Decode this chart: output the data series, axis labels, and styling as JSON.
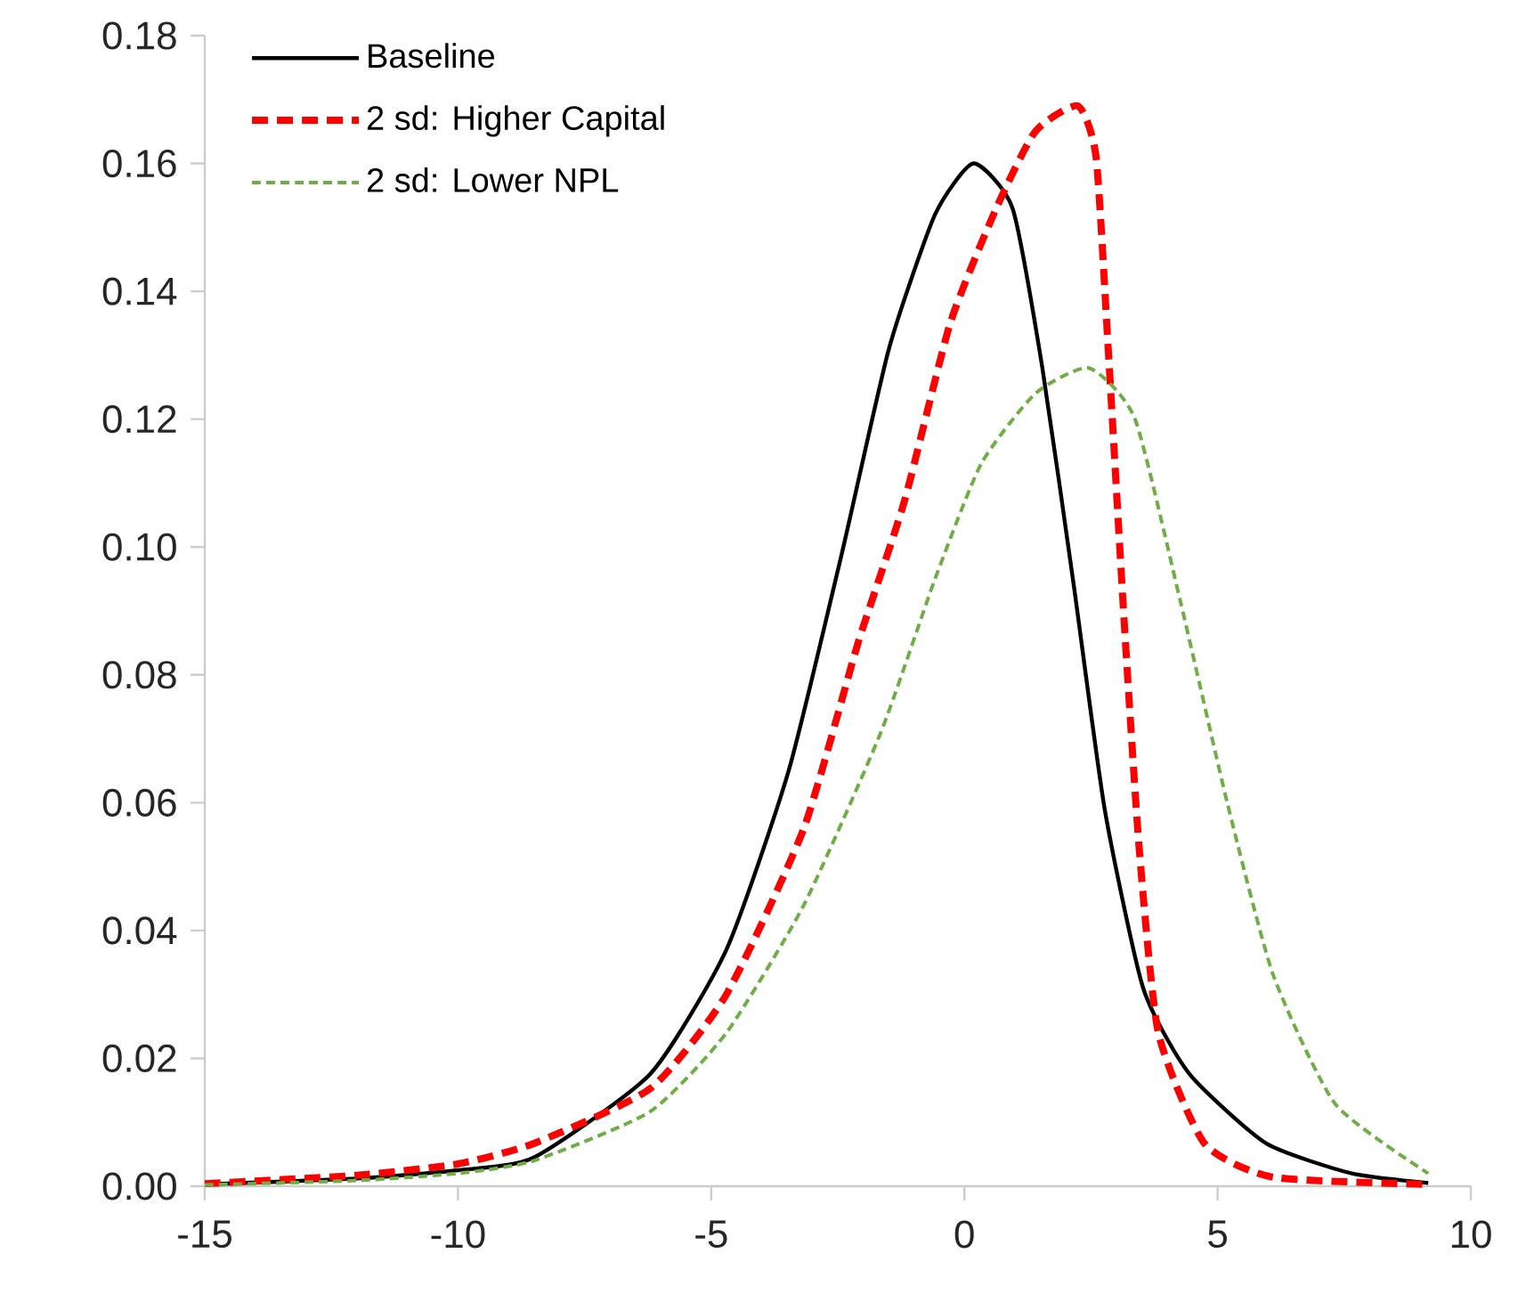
{
  "chart_data": {
    "type": "line",
    "xlim": [
      -15,
      10
    ],
    "xticks": [
      -15,
      -10,
      -5,
      0,
      5,
      10
    ],
    "ylim": [
      0,
      0.18
    ],
    "yticks": [
      {
        "value": 0,
        "label": "0.00"
      },
      {
        "value": 0.02,
        "label": "0.02"
      },
      {
        "value": 0.04,
        "label": "0.04"
      },
      {
        "value": 0.06,
        "label": "0.06"
      },
      {
        "value": 0.08,
        "label": "0.08"
      },
      {
        "value": 0.1,
        "label": "0.10"
      },
      {
        "value": 0.12,
        "label": "0.12"
      },
      {
        "value": 0.14,
        "label": "0.14"
      },
      {
        "value": 0.16,
        "label": "0.16"
      },
      {
        "value": 0.18,
        "label": "0.18"
      }
    ],
    "grid": false,
    "legend": "top left",
    "marker": "none",
    "series": [
      {
        "name": "Baseline",
        "color": "#000000",
        "line_style": "solid",
        "x": [
          -15,
          -12,
          -10,
          -8.5,
          -6.2,
          -4.7,
          -3.47,
          -2.42,
          -1.49,
          -0.58,
          0.18,
          0.95,
          1.54,
          2.16,
          2.77,
          3.53,
          4.44,
          5.96,
          7.65,
          9.16
        ],
        "values": [
          0.0003,
          0.0012,
          0.0025,
          0.0045,
          0.0176,
          0.037,
          0.065,
          0.099,
          0.131,
          0.152,
          0.16,
          0.153,
          0.128,
          0.094,
          0.059,
          0.031,
          0.0176,
          0.0067,
          0.002,
          0.0005
        ]
      },
      {
        "name": "2 sd: Higher Capital",
        "color": "#ff0000",
        "line_style": "dashed",
        "x": [
          -15,
          -12,
          -10,
          -8.5,
          -6.2,
          -4.7,
          -3.17,
          -2.1,
          -1.19,
          -0.28,
          0.63,
          1.4,
          2.24,
          2.6,
          2.84,
          3.15,
          3.45,
          3.83,
          4.74,
          6.1,
          9.16
        ],
        "values": [
          0.0004,
          0.0017,
          0.0035,
          0.0067,
          0.0153,
          0.03,
          0.056,
          0.085,
          0.107,
          0.135,
          0.153,
          0.165,
          0.169,
          0.161,
          0.131,
          0.089,
          0.053,
          0.024,
          0.0067,
          0.0014,
          0.0003
        ]
      },
      {
        "name": "2 sd: Lower NPL",
        "color": "#70ad47",
        "line_style": "dotted",
        "x": [
          -15,
          -12,
          -10,
          -8.5,
          -6.2,
          -4.7,
          -3.17,
          -1.65,
          -0.58,
          0.33,
          1.4,
          2.46,
          3.37,
          4.28,
          5.19,
          6.1,
          7.33,
          9.16
        ],
        "values": [
          0.0002,
          0.0009,
          0.002,
          0.004,
          0.0117,
          0.024,
          0.044,
          0.071,
          0.095,
          0.113,
          0.124,
          0.128,
          0.12,
          0.091,
          0.06,
          0.033,
          0.0128,
          0.002
        ]
      }
    ]
  }
}
